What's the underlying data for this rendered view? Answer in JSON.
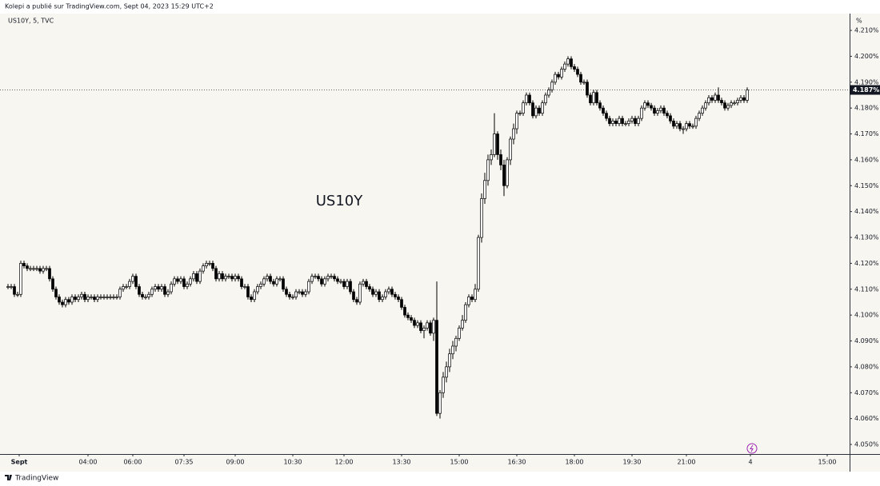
{
  "header": "Kolepi a publié sur TradingView.com, Sept 04, 2023 15:29 UTC+2",
  "footer": "TradingView",
  "chart_data": {
    "type": "candlestick",
    "title": "US10Y",
    "subtitle": "US10Y, 5, TVC",
    "unit": "%",
    "up_color": "#ffffff",
    "down_color": "#000000",
    "open": [
      4.111,
      4.111,
      4.111,
      4.108,
      4.108,
      4.12,
      4.119,
      4.118,
      4.118,
      4.118,
      4.118,
      4.117,
      4.118,
      4.118,
      4.114,
      4.11,
      4.107,
      4.105,
      4.104,
      4.106,
      4.105,
      4.107,
      4.106,
      4.107,
      4.108,
      4.106,
      4.107,
      4.107,
      4.106,
      4.107,
      4.107,
      4.107,
      4.107,
      4.107,
      4.107,
      4.107,
      4.11,
      4.111,
      4.111,
      4.113,
      4.115,
      4.111,
      4.108,
      4.107,
      4.107,
      4.108,
      4.11,
      4.111,
      4.11,
      4.111,
      4.108,
      4.109,
      4.112,
      4.114,
      4.113,
      4.114,
      4.111,
      4.112,
      4.114,
      4.116,
      4.113,
      4.117,
      4.119,
      4.12,
      4.12,
      4.118,
      4.114,
      4.116,
      4.114,
      4.115,
      4.115,
      4.114,
      4.115,
      4.114,
      4.111,
      4.111,
      4.107,
      4.106,
      4.109,
      4.111,
      4.112,
      4.114,
      4.115,
      4.113,
      4.112,
      4.114,
      4.114,
      4.11,
      4.108,
      4.107,
      4.107,
      4.109,
      4.109,
      4.108,
      4.109,
      4.113,
      4.115,
      4.115,
      4.114,
      4.112,
      4.114,
      4.115,
      4.115,
      4.114,
      4.113,
      4.113,
      4.111,
      4.113,
      4.109,
      4.106,
      4.105,
      4.112,
      4.113,
      4.111,
      4.11,
      4.108,
      4.109,
      4.106,
      4.107,
      4.109,
      4.11,
      4.108,
      4.107,
      4.106,
      4.103,
      4.1,
      4.099,
      4.098,
      4.096,
      4.097,
      4.094,
      4.095,
      4.097,
      4.093,
      4.098,
      4.062,
      4.07,
      4.076,
      4.08,
      4.085,
      4.088,
      4.091,
      4.095,
      4.098,
      4.104,
      4.107,
      4.106,
      4.11,
      4.13,
      4.145,
      4.152,
      4.16,
      4.162,
      4.17,
      4.162,
      4.158,
      4.15,
      4.16,
      4.168,
      4.172,
      4.178,
      4.178,
      4.182,
      4.185,
      4.182,
      4.177,
      4.18,
      4.178,
      4.182,
      4.185,
      4.187,
      4.19,
      4.193,
      4.192,
      4.195,
      4.197,
      4.199,
      4.196,
      4.195,
      4.193,
      4.19,
      4.19,
      4.185,
      4.182,
      4.186,
      4.182,
      4.18,
      4.178,
      4.176,
      4.174,
      4.175,
      4.174,
      4.176,
      4.174,
      4.174,
      4.175,
      4.176,
      4.174,
      4.176,
      4.18,
      4.182,
      4.181,
      4.18,
      4.178,
      4.179,
      4.18,
      4.178,
      4.177,
      4.175,
      4.173,
      4.174,
      4.172,
      4.172,
      4.174,
      4.173,
      4.173,
      4.176,
      4.178,
      4.18,
      4.182,
      4.184,
      4.183,
      4.185,
      4.183,
      4.182,
      4.18,
      4.181,
      4.182,
      4.182,
      4.183,
      4.184,
      4.183
    ],
    "high": [
      4.112,
      4.112,
      4.112,
      4.109,
      4.121,
      4.121,
      4.12,
      4.119,
      4.119,
      4.119,
      4.119,
      4.119,
      4.119,
      4.119,
      4.115,
      4.111,
      4.108,
      4.106,
      4.107,
      4.107,
      4.108,
      4.108,
      4.108,
      4.109,
      4.109,
      4.108,
      4.108,
      4.108,
      4.108,
      4.108,
      4.108,
      4.108,
      4.108,
      4.108,
      4.108,
      4.111,
      4.112,
      4.112,
      4.114,
      4.116,
      4.116,
      4.112,
      4.109,
      4.108,
      4.109,
      4.111,
      4.112,
      4.112,
      4.112,
      4.112,
      4.11,
      4.113,
      4.115,
      4.115,
      4.115,
      4.115,
      4.113,
      4.115,
      4.117,
      4.117,
      4.118,
      4.12,
      4.121,
      4.121,
      4.121,
      4.119,
      4.117,
      4.117,
      4.116,
      4.116,
      4.116,
      4.116,
      4.116,
      4.115,
      4.112,
      4.112,
      4.108,
      4.11,
      4.112,
      4.113,
      4.115,
      4.116,
      4.116,
      4.114,
      4.115,
      4.115,
      4.115,
      4.111,
      4.109,
      4.108,
      4.11,
      4.11,
      4.11,
      4.11,
      4.114,
      4.116,
      4.116,
      4.116,
      4.115,
      4.115,
      4.116,
      4.116,
      4.116,
      4.115,
      4.114,
      4.114,
      4.114,
      4.114,
      4.11,
      4.107,
      4.113,
      4.114,
      4.114,
      4.112,
      4.111,
      4.11,
      4.11,
      4.108,
      4.11,
      4.111,
      4.111,
      4.109,
      4.108,
      4.107,
      4.104,
      4.101,
      4.1,
      4.099,
      4.098,
      4.098,
      4.096,
      4.098,
      4.098,
      4.099,
      4.113,
      4.071,
      4.078,
      4.082,
      4.087,
      4.09,
      4.092,
      4.096,
      4.1,
      4.105,
      4.108,
      4.108,
      4.112,
      4.131,
      4.147,
      4.155,
      4.162,
      4.164,
      4.178,
      4.171,
      4.164,
      4.16,
      4.161,
      4.169,
      4.174,
      4.179,
      4.179,
      4.183,
      4.186,
      4.186,
      4.183,
      4.181,
      4.181,
      4.183,
      4.186,
      4.188,
      4.191,
      4.194,
      4.194,
      4.196,
      4.198,
      4.2,
      4.2,
      4.197,
      4.196,
      4.194,
      4.191,
      4.191,
      4.186,
      4.187,
      4.187,
      4.183,
      4.181,
      4.179,
      4.177,
      4.176,
      4.176,
      4.177,
      4.177,
      4.175,
      4.176,
      4.177,
      4.177,
      4.177,
      4.181,
      4.183,
      4.183,
      4.182,
      4.181,
      4.18,
      4.181,
      4.181,
      4.179,
      4.178,
      4.176,
      4.175,
      4.175,
      4.173,
      4.175,
      4.175,
      4.174,
      4.177,
      4.179,
      4.181,
      4.183,
      4.185,
      4.185,
      4.186,
      4.188,
      4.184,
      4.183,
      4.182,
      4.183,
      4.183,
      4.184,
      4.185,
      4.185,
      4.188
    ],
    "low": [
      4.11,
      4.11,
      4.107,
      4.107,
      4.107,
      4.118,
      4.117,
      4.117,
      4.117,
      4.117,
      4.116,
      4.116,
      4.117,
      4.113,
      4.109,
      4.106,
      4.104,
      4.103,
      4.103,
      4.104,
      4.104,
      4.105,
      4.105,
      4.106,
      4.105,
      4.105,
      4.106,
      4.105,
      4.105,
      4.106,
      4.106,
      4.106,
      4.106,
      4.106,
      4.106,
      4.106,
      4.109,
      4.11,
      4.11,
      4.112,
      4.11,
      4.107,
      4.106,
      4.106,
      4.106,
      4.107,
      4.109,
      4.109,
      4.109,
      4.107,
      4.107,
      4.108,
      4.111,
      4.112,
      4.112,
      4.11,
      4.11,
      4.111,
      4.113,
      4.112,
      4.112,
      4.116,
      4.118,
      4.119,
      4.117,
      4.113,
      4.113,
      4.113,
      4.113,
      4.114,
      4.113,
      4.113,
      4.113,
      4.11,
      4.11,
      4.106,
      4.105,
      4.105,
      4.108,
      4.11,
      4.111,
      4.113,
      4.112,
      4.111,
      4.111,
      4.113,
      4.109,
      4.107,
      4.106,
      4.106,
      4.106,
      4.108,
      4.107,
      4.107,
      4.108,
      4.112,
      4.114,
      4.113,
      4.111,
      4.111,
      4.113,
      4.114,
      4.113,
      4.112,
      4.112,
      4.11,
      4.11,
      4.108,
      4.105,
      4.104,
      4.104,
      4.111,
      4.11,
      4.109,
      4.107,
      4.107,
      4.105,
      4.105,
      4.106,
      4.108,
      4.107,
      4.106,
      4.105,
      4.102,
      4.099,
      4.098,
      4.097,
      4.095,
      4.095,
      4.093,
      4.091,
      4.094,
      4.092,
      4.09,
      4.061,
      4.06,
      4.068,
      4.074,
      4.078,
      4.083,
      4.086,
      4.09,
      4.094,
      4.097,
      4.103,
      4.105,
      4.105,
      4.109,
      4.128,
      4.143,
      4.15,
      4.158,
      4.161,
      4.16,
      4.156,
      4.146,
      4.149,
      4.158,
      4.166,
      4.17,
      4.177,
      4.177,
      4.181,
      4.181,
      4.176,
      4.176,
      4.177,
      4.177,
      4.181,
      4.184,
      4.186,
      4.189,
      4.191,
      4.191,
      4.194,
      4.196,
      4.195,
      4.194,
      4.192,
      4.189,
      4.189,
      4.184,
      4.181,
      4.181,
      4.181,
      4.179,
      4.177,
      4.175,
      4.173,
      4.173,
      4.173,
      4.173,
      4.173,
      4.173,
      4.173,
      4.174,
      4.173,
      4.173,
      4.175,
      4.179,
      4.18,
      4.179,
      4.177,
      4.177,
      4.178,
      4.177,
      4.176,
      4.174,
      4.172,
      4.172,
      4.171,
      4.17,
      4.171,
      4.172,
      4.172,
      4.172,
      4.175,
      4.177,
      4.179,
      4.181,
      4.182,
      4.182,
      4.182,
      4.181,
      4.179,
      4.179,
      4.18,
      4.181,
      4.181,
      4.182,
      4.182,
      4.182
    ],
    "close": [
      4.111,
      4.111,
      4.108,
      4.108,
      4.12,
      4.119,
      4.118,
      4.118,
      4.118,
      4.118,
      4.117,
      4.118,
      4.118,
      4.114,
      4.11,
      4.107,
      4.105,
      4.104,
      4.106,
      4.105,
      4.107,
      4.106,
      4.107,
      4.108,
      4.106,
      4.107,
      4.107,
      4.106,
      4.107,
      4.107,
      4.107,
      4.107,
      4.107,
      4.107,
      4.107,
      4.11,
      4.111,
      4.111,
      4.113,
      4.115,
      4.111,
      4.108,
      4.107,
      4.107,
      4.108,
      4.11,
      4.111,
      4.11,
      4.111,
      4.108,
      4.109,
      4.112,
      4.114,
      4.113,
      4.114,
      4.111,
      4.112,
      4.114,
      4.116,
      4.113,
      4.117,
      4.119,
      4.12,
      4.12,
      4.118,
      4.114,
      4.116,
      4.114,
      4.115,
      4.115,
      4.114,
      4.115,
      4.114,
      4.111,
      4.111,
      4.107,
      4.106,
      4.109,
      4.111,
      4.112,
      4.114,
      4.115,
      4.113,
      4.112,
      4.114,
      4.114,
      4.11,
      4.108,
      4.107,
      4.107,
      4.109,
      4.109,
      4.108,
      4.109,
      4.113,
      4.115,
      4.115,
      4.114,
      4.112,
      4.114,
      4.115,
      4.115,
      4.114,
      4.113,
      4.113,
      4.111,
      4.113,
      4.109,
      4.106,
      4.105,
      4.112,
      4.113,
      4.111,
      4.11,
      4.108,
      4.109,
      4.106,
      4.107,
      4.109,
      4.11,
      4.108,
      4.107,
      4.106,
      4.103,
      4.1,
      4.099,
      4.098,
      4.096,
      4.097,
      4.094,
      4.095,
      4.097,
      4.093,
      4.098,
      4.062,
      4.07,
      4.076,
      4.08,
      4.085,
      4.088,
      4.091,
      4.095,
      4.098,
      4.104,
      4.107,
      4.106,
      4.11,
      4.13,
      4.145,
      4.152,
      4.16,
      4.162,
      4.17,
      4.162,
      4.158,
      4.15,
      4.16,
      4.168,
      4.172,
      4.178,
      4.178,
      4.182,
      4.185,
      4.182,
      4.177,
      4.18,
      4.178,
      4.182,
      4.185,
      4.187,
      4.19,
      4.193,
      4.192,
      4.195,
      4.197,
      4.199,
      4.196,
      4.195,
      4.193,
      4.19,
      4.19,
      4.185,
      4.182,
      4.186,
      4.182,
      4.18,
      4.178,
      4.176,
      4.174,
      4.175,
      4.174,
      4.176,
      4.174,
      4.174,
      4.175,
      4.176,
      4.174,
      4.176,
      4.18,
      4.182,
      4.181,
      4.18,
      4.178,
      4.179,
      4.18,
      4.178,
      4.177,
      4.175,
      4.173,
      4.174,
      4.172,
      4.172,
      4.174,
      4.173,
      4.173,
      4.176,
      4.178,
      4.18,
      4.182,
      4.184,
      4.183,
      4.185,
      4.183,
      4.182,
      4.18,
      4.181,
      4.182,
      4.182,
      4.183,
      4.184,
      4.183,
      4.187
    ],
    "price_line": {
      "value": 4.187,
      "label": "4.187%"
    },
    "xlim": [
      -2.5,
      263
    ],
    "xticks": [
      {
        "value": 3.5,
        "label": "Sept"
      },
      {
        "value": 25,
        "label": "04:00"
      },
      {
        "value": 39,
        "label": "06:00"
      },
      {
        "value": 55,
        "label": "07:35"
      },
      {
        "value": 71,
        "label": "09:00"
      },
      {
        "value": 89,
        "label": "10:30"
      },
      {
        "value": 105,
        "label": "12:00"
      },
      {
        "value": 123,
        "label": "13:30"
      },
      {
        "value": 141,
        "label": "15:00"
      },
      {
        "value": 159,
        "label": "16:30"
      },
      {
        "value": 177,
        "label": "18:00"
      },
      {
        "value": 195,
        "label": "19:30"
      },
      {
        "value": 212,
        "label": "21:00"
      },
      {
        "value": 232,
        "label": "4"
      },
      {
        "value": 256,
        "label": "15:00"
      }
    ],
    "ylim": [
      4.0463,
      4.2165
    ],
    "yticks": [
      {
        "value": 4.05,
        "label": "4.050%"
      },
      {
        "value": 4.06,
        "label": "4.060%"
      },
      {
        "value": 4.07,
        "label": "4.070%"
      },
      {
        "value": 4.08,
        "label": "4.080%"
      },
      {
        "value": 4.09,
        "label": "4.090%"
      },
      {
        "value": 4.1,
        "label": "4.100%"
      },
      {
        "value": 4.11,
        "label": "4.110%"
      },
      {
        "value": 4.12,
        "label": "4.120%"
      },
      {
        "value": 4.13,
        "label": "4.130%"
      },
      {
        "value": 4.14,
        "label": "4.140%"
      },
      {
        "value": 4.15,
        "label": "4.150%"
      },
      {
        "value": 4.16,
        "label": "4.160%"
      },
      {
        "value": 4.17,
        "label": "4.170%"
      },
      {
        "value": 4.18,
        "label": "4.180%"
      },
      {
        "value": 4.19,
        "label": "4.190%"
      },
      {
        "value": 4.2,
        "label": "4.200%"
      },
      {
        "value": 4.21,
        "label": "4.210%"
      }
    ]
  }
}
